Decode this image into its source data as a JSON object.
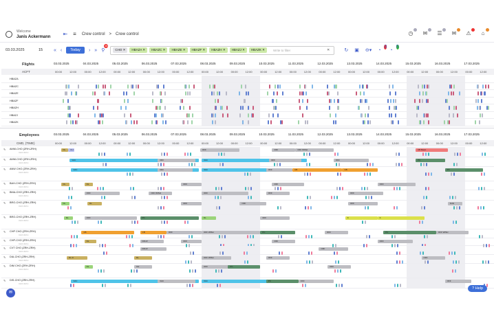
{
  "header": {
    "welcome": "Welcome",
    "user_name": "Janis Ackermann",
    "breadcrumb": [
      "Crew control",
      ">",
      "Crew control"
    ]
  },
  "toolbar": {
    "date": "03.03.2025",
    "days": "15",
    "today_label": "Today",
    "filter_chips": [
      "CHO",
      "HBAZA",
      "HBAZC",
      "HBAZE",
      "HBAZF",
      "HBAZH",
      "HBAZJ",
      "HBAZK"
    ],
    "filter_placeholder": "Write to filter",
    "filter_clear": "✕",
    "badge_left": "16",
    "badge_red": "0",
    "badge_green": "0"
  },
  "timeline": {
    "days": [
      "03.03.2025",
      "04.03.2025",
      "05.03.2025",
      "06.03.2025",
      "07.03.2025",
      "08.03.2025",
      "09.03.2025",
      "10.03.2025",
      "11.03.2025",
      "12.03.2025",
      "13.03.2025",
      "14.03.2025",
      "15.03.2025",
      "16.03.2025",
      "17.03.2025"
    ],
    "times": [
      "00:00",
      "12:00"
    ]
  },
  "flights": {
    "title": "Flights",
    "col_header": "ACFT",
    "rows": [
      "HBAZA",
      "HBAZC",
      "HBAZE",
      "HBAZF",
      "HBAZH",
      "HBAZJ",
      "HBAZK"
    ]
  },
  "employees": {
    "title": "Employees",
    "col_header": "CMD, (TIME)",
    "rows": [
      {
        "label": "AMM-CHO (ZRH-ZRH)",
        "sub": "CHO-3M-1"
      },
      {
        "label": "AMM-CHO (ZRH-ZRH)",
        "sub": "CHO-3M-1"
      },
      {
        "label": "ANW CHO (ZRH-ZRH)",
        "sub": "CHO-3M-1"
      },
      {
        "label": "BAH-CHO (ZRH-ZRH)",
        "sub": "CHO-3M-1"
      },
      {
        "label": "BMA-CHO (ZRH-ZRH)",
        "sub": "CHO-3M-1"
      },
      {
        "label": "BRO-CHO (ZRH-ZRH)",
        "sub": "CHO-3M-1"
      },
      {
        "label": "BRO-CHO (ZRH-ZRH)",
        "sub": "CHO-3M-1"
      },
      {
        "label": "CHP CHO (ZRH-ZRH)",
        "sub": "CHO-3M-1"
      },
      {
        "label": "CHP-CHO (ZRH-ZRH)",
        "sub": "CHO-3M-1"
      },
      {
        "label": "CVT CHO (ZRH-ZRH)",
        "sub": "CHO-3M-1"
      },
      {
        "label": "DIA-CHO (ZRH-ZRH)",
        "sub": "CHO-3M-1"
      },
      {
        "label": "DIM CHO (ZRH-ZRH)",
        "sub": "CHO-3M-1"
      },
      {
        "label": "DIS-CHO (ZRH-ZRH)",
        "sub": "CHO-3M-1"
      }
    ]
  },
  "help_label": "Help",
  "colors": {
    "accent": "#3d6fd8",
    "vac": "#4fc3e8",
    "off": "#bdbdc2",
    "dark_green": "#5b8f6a",
    "orange": "#f0a030",
    "yellow": "#dbe04a",
    "light_green": "#9bd47a",
    "pink": "#f07a7a"
  }
}
